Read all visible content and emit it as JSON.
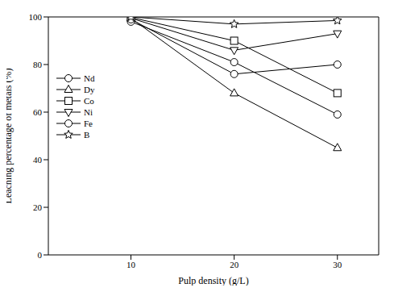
{
  "chart_data": {
    "type": "line",
    "x_label": "Pulp density (g/L)",
    "y_label": "Leaching percentage of metals (%)",
    "x": [
      10,
      20,
      30
    ],
    "xlim": [
      2,
      34
    ],
    "xticks": [
      10,
      20,
      30
    ],
    "ylim": [
      0,
      100
    ],
    "yticks": [
      0,
      20,
      40,
      60,
      80,
      100
    ],
    "grid": false,
    "legend": "upper left",
    "series": [
      {
        "name": "Nd",
        "color": "#000000",
        "marker": "circle",
        "values": [
          98,
          81,
          59
        ]
      },
      {
        "name": "Dy",
        "color": "#000000",
        "marker": "triangle",
        "values": [
          99.5,
          68,
          45
        ]
      },
      {
        "name": "Co",
        "color": "#000000",
        "marker": "square",
        "values": [
          99.8,
          90,
          68
        ]
      },
      {
        "name": "Ni",
        "color": "#000000",
        "marker": "triangle-down",
        "values": [
          99.5,
          86,
          93
        ]
      },
      {
        "name": "Fe",
        "color": "#000000",
        "marker": "circle",
        "values": [
          99,
          76,
          80
        ]
      },
      {
        "name": "B",
        "color": "#000000",
        "marker": "star",
        "values": [
          100,
          97,
          98.5
        ]
      }
    ]
  }
}
